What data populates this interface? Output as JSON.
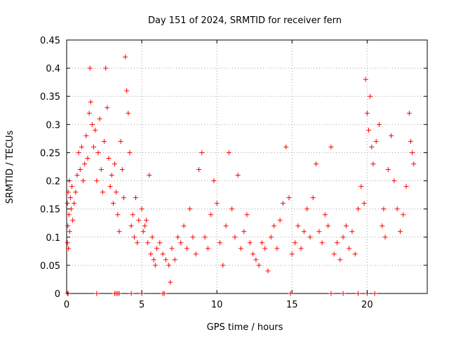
{
  "chart_data": {
    "type": "scatter",
    "title": "Day 151 of 2024, SRMTID for receiver fern",
    "xlabel": "GPS time / hours",
    "ylabel": "SRMTID / TECUs",
    "xlim": [
      0,
      24
    ],
    "ylim": [
      0,
      0.45
    ],
    "xticks": [
      0,
      5,
      10,
      15,
      20
    ],
    "xtick_labels": [
      "0",
      "5",
      "10",
      "15",
      "20"
    ],
    "yticks": [
      0,
      0.05,
      0.1,
      0.15,
      0.2,
      0.25,
      0.3,
      0.35,
      0.4,
      0.45
    ],
    "ytick_labels": [
      "0",
      "0.05",
      "0.1",
      "0.15",
      "0.2",
      "0.25",
      "0.3",
      "0.35",
      "0.4",
      "0.45"
    ],
    "grid": true,
    "marker": "+",
    "color": "#ff0000",
    "series": [
      {
        "name": "SRMTID",
        "points": [
          [
            0.05,
            0.09
          ],
          [
            0.05,
            0.16
          ],
          [
            0.08,
            0.12
          ],
          [
            0.1,
            0.18
          ],
          [
            0.12,
            0.08
          ],
          [
            0.15,
            0.14
          ],
          [
            0.18,
            0.2
          ],
          [
            0.2,
            0.11
          ],
          [
            0.25,
            0.17
          ],
          [
            0.3,
            0.15
          ],
          [
            0.35,
            0.19
          ],
          [
            0.4,
            0.13
          ],
          [
            0.5,
            0.16
          ],
          [
            0.6,
            0.18
          ],
          [
            0.7,
            0.21
          ],
          [
            0.8,
            0.25
          ],
          [
            0.9,
            0.22
          ],
          [
            1.0,
            0.26
          ],
          [
            1.1,
            0.2
          ],
          [
            1.2,
            0.23
          ],
          [
            1.3,
            0.28
          ],
          [
            1.4,
            0.24
          ],
          [
            1.5,
            0.32
          ],
          [
            1.55,
            0.4
          ],
          [
            1.6,
            0.34
          ],
          [
            1.7,
            0.3
          ],
          [
            1.8,
            0.26
          ],
          [
            1.9,
            0.29
          ],
          [
            2.0,
            0.2
          ],
          [
            2.1,
            0.25
          ],
          [
            2.2,
            0.31
          ],
          [
            2.3,
            0.22
          ],
          [
            2.4,
            0.18
          ],
          [
            2.5,
            0.27
          ],
          [
            2.6,
            0.4
          ],
          [
            2.7,
            0.33
          ],
          [
            2.8,
            0.24
          ],
          [
            2.9,
            0.19
          ],
          [
            3.0,
            0.21
          ],
          [
            3.1,
            0.16
          ],
          [
            3.2,
            0.23
          ],
          [
            3.3,
            0.18
          ],
          [
            3.4,
            0.14
          ],
          [
            3.5,
            0.11
          ],
          [
            3.6,
            0.27
          ],
          [
            3.7,
            0.22
          ],
          [
            3.8,
            0.17
          ],
          [
            3.9,
            0.42
          ],
          [
            4.0,
            0.36
          ],
          [
            4.1,
            0.32
          ],
          [
            4.2,
            0.25
          ],
          [
            4.3,
            0.12
          ],
          [
            4.4,
            0.14
          ],
          [
            4.5,
            0.1
          ],
          [
            4.6,
            0.17
          ],
          [
            4.7,
            0.09
          ],
          [
            4.8,
            0.13
          ],
          [
            5.0,
            0.15
          ],
          [
            5.1,
            0.11
          ],
          [
            5.2,
            0.12
          ],
          [
            5.3,
            0.13
          ],
          [
            5.4,
            0.09
          ],
          [
            5.5,
            0.21
          ],
          [
            5.6,
            0.07
          ],
          [
            5.7,
            0.1
          ],
          [
            5.8,
            0.06
          ],
          [
            5.9,
            0.05
          ],
          [
            6.0,
            0.08
          ],
          [
            6.2,
            0.09
          ],
          [
            6.4,
            0.07
          ],
          [
            6.6,
            0.06
          ],
          [
            6.8,
            0.05
          ],
          [
            6.9,
            0.02
          ],
          [
            7.0,
            0.08
          ],
          [
            7.2,
            0.06
          ],
          [
            7.4,
            0.1
          ],
          [
            7.6,
            0.09
          ],
          [
            7.8,
            0.12
          ],
          [
            8.0,
            0.08
          ],
          [
            8.2,
            0.15
          ],
          [
            8.4,
            0.1
          ],
          [
            8.6,
            0.07
          ],
          [
            8.8,
            0.22
          ],
          [
            9.0,
            0.25
          ],
          [
            9.2,
            0.1
          ],
          [
            9.4,
            0.08
          ],
          [
            9.6,
            0.14
          ],
          [
            9.8,
            0.2
          ],
          [
            10.0,
            0.16
          ],
          [
            10.2,
            0.09
          ],
          [
            10.4,
            0.05
          ],
          [
            10.6,
            0.12
          ],
          [
            10.8,
            0.25
          ],
          [
            11.0,
            0.15
          ],
          [
            11.2,
            0.1
          ],
          [
            11.4,
            0.21
          ],
          [
            11.6,
            0.08
          ],
          [
            11.8,
            0.11
          ],
          [
            12.0,
            0.14
          ],
          [
            12.2,
            0.09
          ],
          [
            12.4,
            0.07
          ],
          [
            12.6,
            0.06
          ],
          [
            12.8,
            0.05
          ],
          [
            13.0,
            0.09
          ],
          [
            13.2,
            0.08
          ],
          [
            13.4,
            0.04
          ],
          [
            13.6,
            0.1
          ],
          [
            13.8,
            0.12
          ],
          [
            14.0,
            0.08
          ],
          [
            14.2,
            0.13
          ],
          [
            14.4,
            0.16
          ],
          [
            14.6,
            0.26
          ],
          [
            14.8,
            0.17
          ],
          [
            15.0,
            0.07
          ],
          [
            15.2,
            0.09
          ],
          [
            15.4,
            0.12
          ],
          [
            15.6,
            0.08
          ],
          [
            15.8,
            0.11
          ],
          [
            16.0,
            0.15
          ],
          [
            16.2,
            0.1
          ],
          [
            16.4,
            0.17
          ],
          [
            16.6,
            0.23
          ],
          [
            16.8,
            0.11
          ],
          [
            17.0,
            0.09
          ],
          [
            17.2,
            0.14
          ],
          [
            17.4,
            0.12
          ],
          [
            17.6,
            0.26
          ],
          [
            17.8,
            0.07
          ],
          [
            18.0,
            0.09
          ],
          [
            18.2,
            0.06
          ],
          [
            18.4,
            0.1
          ],
          [
            18.6,
            0.12
          ],
          [
            18.8,
            0.08
          ],
          [
            19.0,
            0.11
          ],
          [
            19.2,
            0.07
          ],
          [
            19.4,
            0.15
          ],
          [
            19.6,
            0.19
          ],
          [
            19.8,
            0.16
          ],
          [
            19.9,
            0.38
          ],
          [
            20.0,
            0.32
          ],
          [
            20.1,
            0.29
          ],
          [
            20.2,
            0.35
          ],
          [
            20.3,
            0.26
          ],
          [
            20.4,
            0.23
          ],
          [
            20.6,
            0.27
          ],
          [
            20.8,
            0.3
          ],
          [
            21.0,
            0.12
          ],
          [
            21.1,
            0.15
          ],
          [
            21.2,
            0.1
          ],
          [
            21.4,
            0.22
          ],
          [
            21.6,
            0.28
          ],
          [
            21.8,
            0.2
          ],
          [
            22.0,
            0.15
          ],
          [
            22.2,
            0.11
          ],
          [
            22.4,
            0.14
          ],
          [
            22.6,
            0.19
          ],
          [
            22.8,
            0.32
          ],
          [
            22.9,
            0.27
          ],
          [
            23.0,
            0.25
          ],
          [
            23.1,
            0.23
          ]
        ],
        "zero_points": [
          0.05,
          0.1,
          2.0,
          3.2,
          3.3,
          3.4,
          3.5,
          4.3,
          5.0,
          6.4,
          6.5,
          14.9,
          17.6,
          18.4,
          19.4,
          20.0,
          20.5
        ]
      }
    ]
  }
}
